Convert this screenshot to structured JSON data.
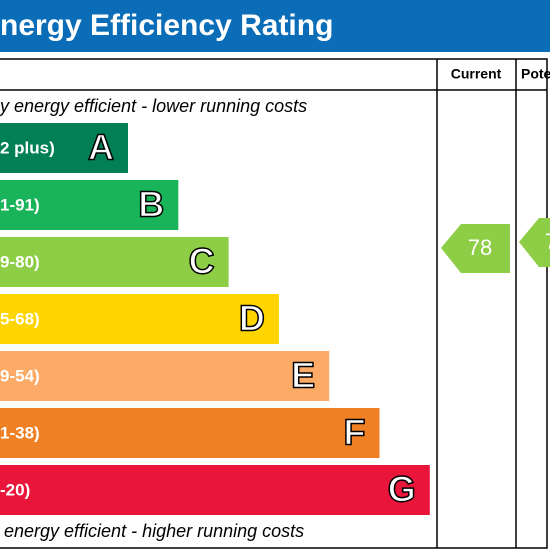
{
  "header": {
    "title": "nergy Efficiency Rating"
  },
  "columns": {
    "current": "Current",
    "potential": "Pote"
  },
  "top_note": "y energy efficient - lower running costs",
  "bottom_note": "energy efficient - higher running costs",
  "bands": [
    {
      "range": "2 plus)",
      "letter": "A",
      "color": "#008054"
    },
    {
      "range": "1-91)",
      "letter": "B",
      "color": "#19b459"
    },
    {
      "range": "9-80)",
      "letter": "C",
      "color": "#8dce46"
    },
    {
      "range": "5-68)",
      "letter": "D",
      "color": "#ffd500"
    },
    {
      "range": "9-54)",
      "letter": "E",
      "color": "#fcaa65"
    },
    {
      "range": "1-38)",
      "letter": "F",
      "color": "#ef8023"
    },
    {
      "range": "-20)",
      "letter": "G",
      "color": "#e9153b"
    }
  ],
  "current": {
    "value": "78",
    "color": "#8dce46"
  },
  "potential": {
    "value": "7",
    "color": "#8dce46"
  }
}
